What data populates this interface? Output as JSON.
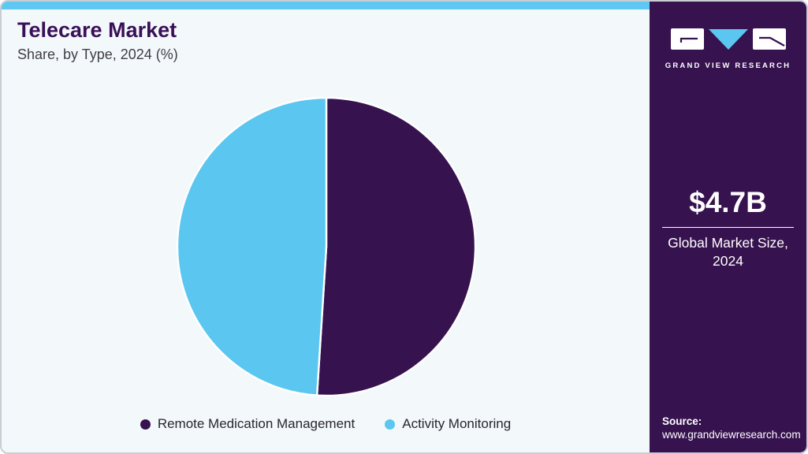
{
  "header": {
    "title": "Telecare Market",
    "subtitle": "Share, by Type, 2024 (%)"
  },
  "chart_data": {
    "type": "pie",
    "title": "Telecare Market Share, by Type, 2024 (%)",
    "unit": "%",
    "start_angle_deg": 0,
    "direction": "clockwise",
    "legend_position": "bottom",
    "segments": [
      {
        "label": "Remote Medication Management",
        "value": 51,
        "color": "#36124E"
      },
      {
        "label": "Activity Monitoring",
        "value": 49,
        "color": "#5BC7F0"
      }
    ]
  },
  "sidebar": {
    "logo": {
      "brand": "GRAND VIEW RESEARCH",
      "icon": "gvr-logo"
    },
    "market_size_value": "$4.7B",
    "market_size_label": "Global Market Size, 2024",
    "source_label": "Source:",
    "source_url": "www.grandviewresearch.com"
  },
  "colors": {
    "accent_blue": "#5EC8F2",
    "brand_purple": "#36124E",
    "panel_background": "#F3F8FB",
    "title_text": "#3A1057",
    "divider_white": "#FFFFFF"
  }
}
